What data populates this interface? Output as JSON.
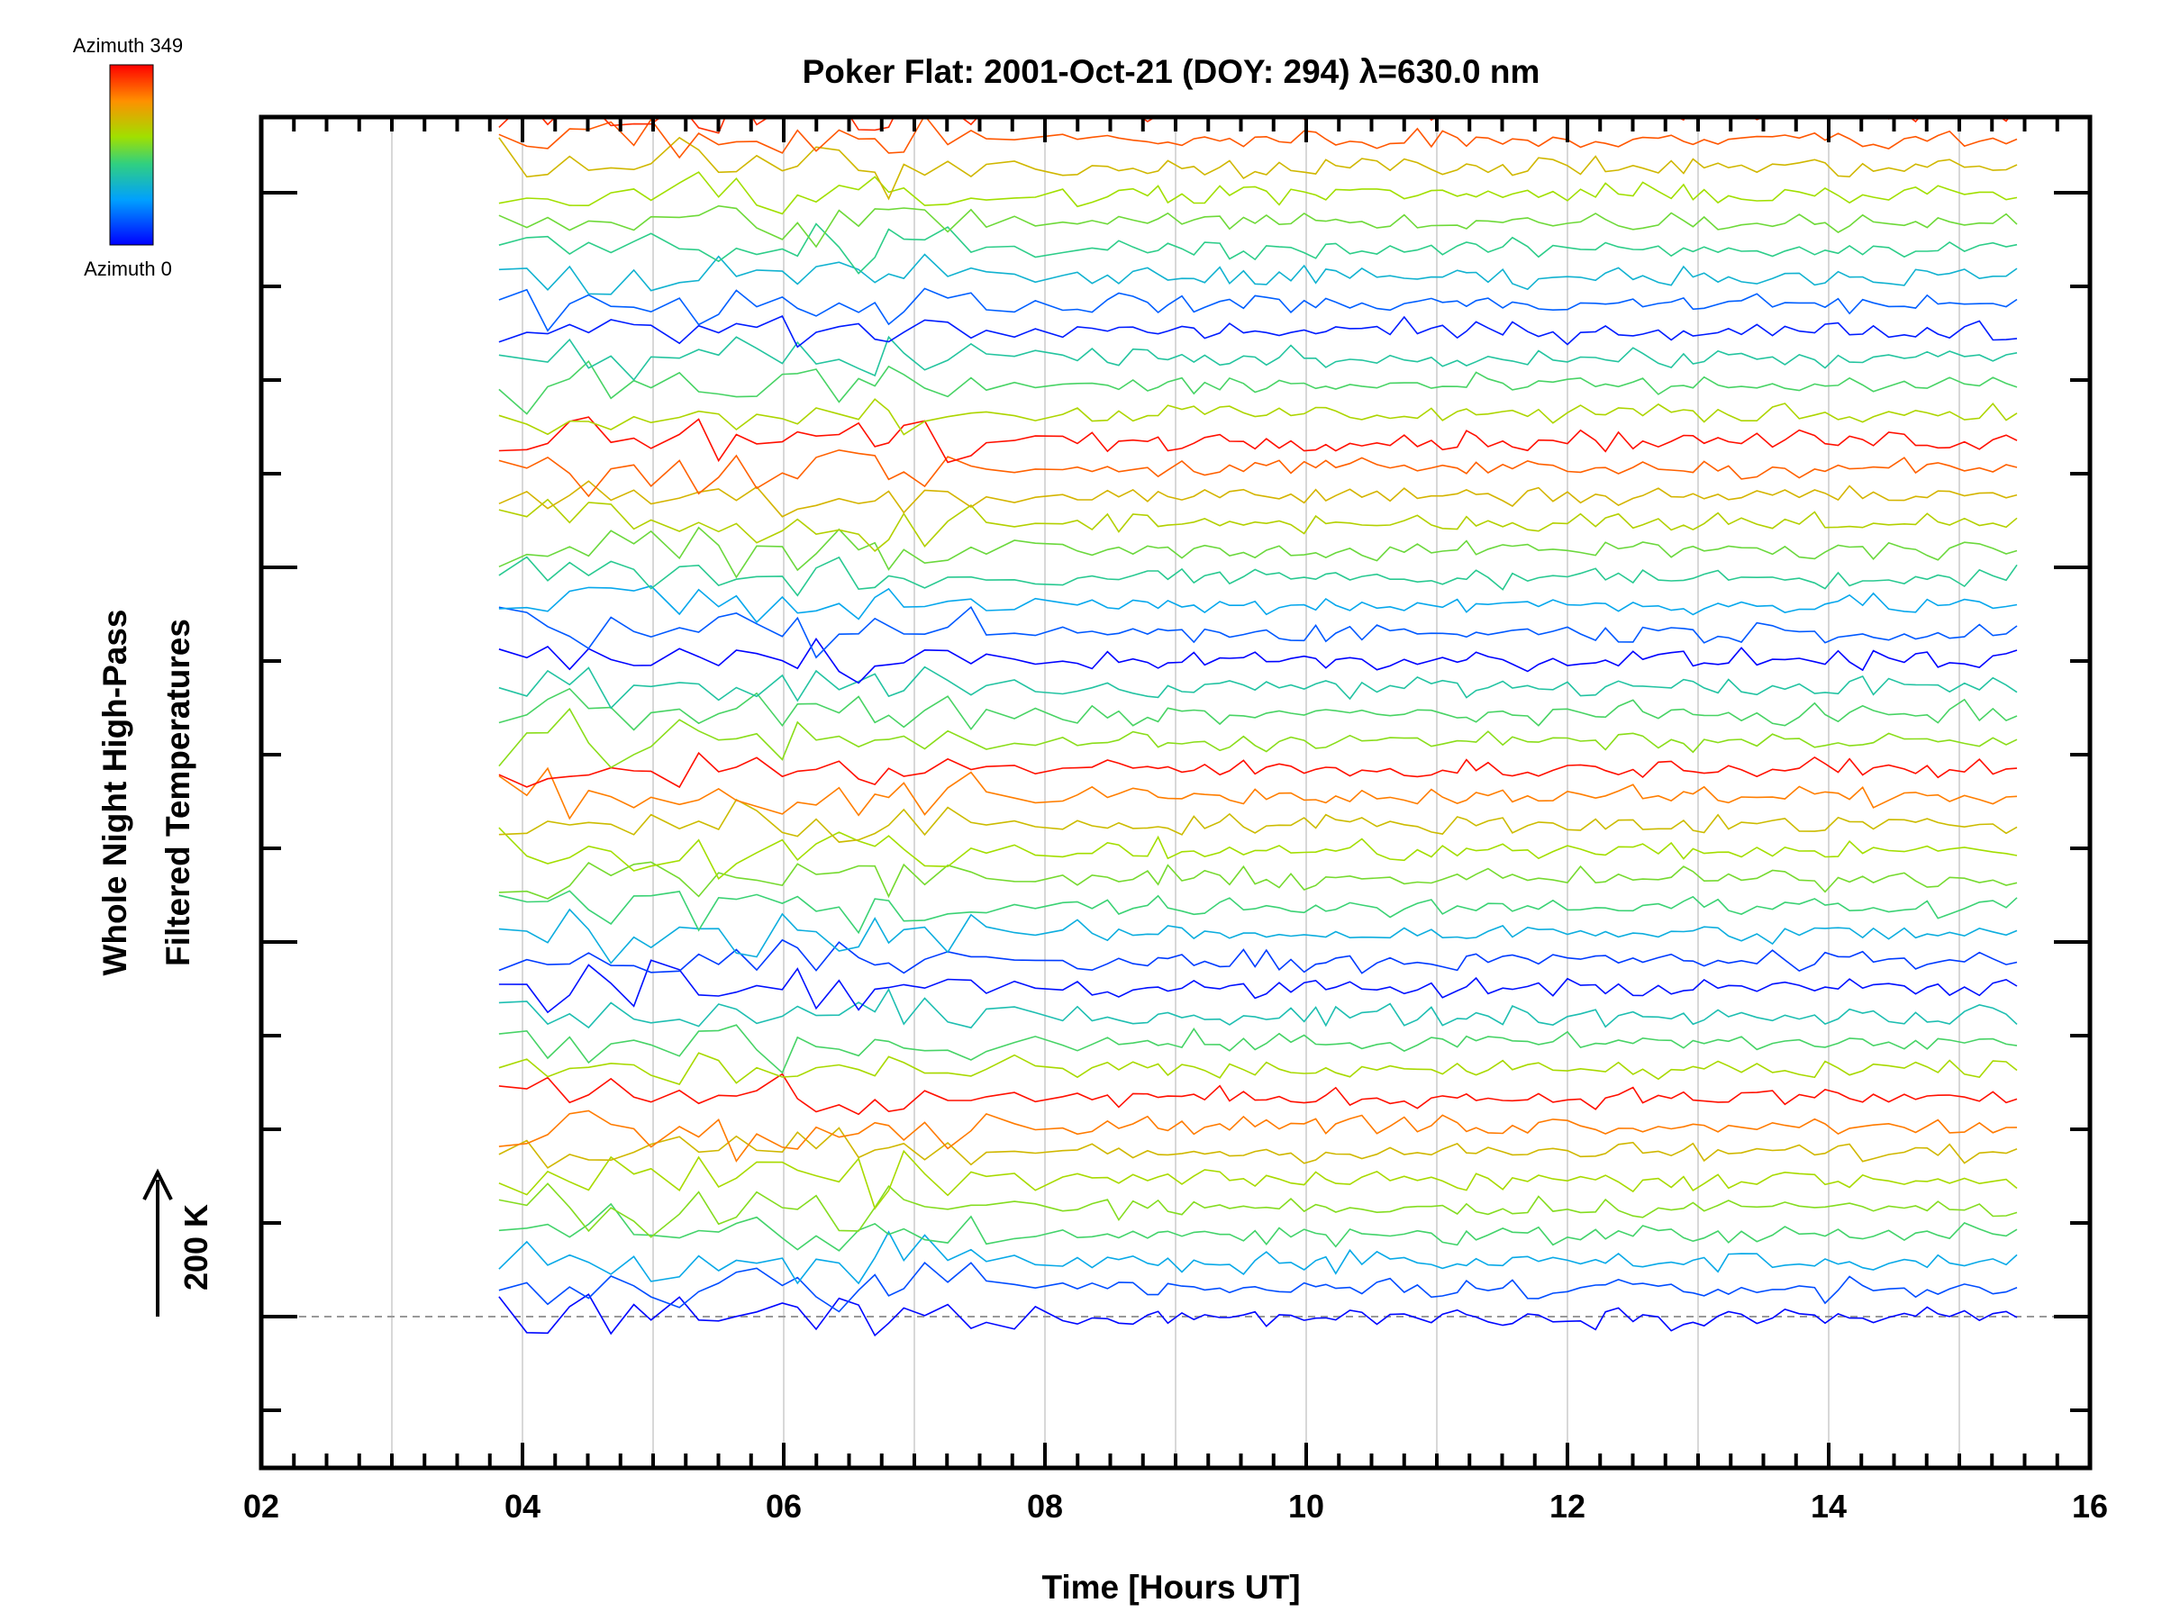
{
  "chart_data": {
    "type": "line",
    "title": "Poker Flat: 2001-Oct-21 (DOY: 294) λ=630.0 nm",
    "xlabel": "Time [Hours UT]",
    "ylabel_line1": "Whole Night High-Pass",
    "ylabel_line2": "Filtered Temperatures",
    "scale_label": "200 K",
    "scale_kelvin": 200,
    "xlim": [
      2,
      16
    ],
    "x_tick_labels": [
      "02",
      "04",
      "06",
      "08",
      "10",
      "12",
      "14",
      "16"
    ],
    "colorbar": {
      "top_label": "Azimuth 349",
      "bottom_label": "Azimuth 0",
      "azimuth_range": [
        0,
        349
      ]
    },
    "grid": "vertical",
    "baseline": "dashed",
    "time_start": 3.82,
    "time_end": 15.5,
    "num_series": 48,
    "offset_kelvin_per_series": 40,
    "noise_kelvin": 25
  }
}
